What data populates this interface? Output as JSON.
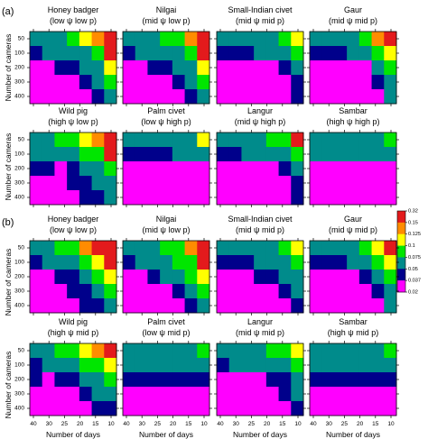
{
  "figure": {
    "panel_labels": [
      "(a)",
      "(b)"
    ],
    "ylabel": "Number of cameras",
    "xlabel": "Number of days",
    "x_ticks": [
      "40",
      "30",
      "25",
      "20",
      "15",
      "10"
    ],
    "y_ticks": [
      "50",
      "100",
      "200",
      "300",
      "400"
    ],
    "legend": {
      "ticks": [
        "0.32",
        "0.15",
        "0.125",
        "0.1",
        "0.075",
        "0.05",
        "0.037",
        "0.02"
      ],
      "colors": [
        "#e31a1c",
        "#ff8c00",
        "#ffff00",
        "#00e600",
        "#008b8b",
        "#00008b",
        "#ff00ff"
      ]
    }
  },
  "chart_data": [
    {
      "type": "heatmap",
      "panel": "(a)",
      "title": "Honey badger",
      "subtitle": "(low ψ low p)",
      "x": [
        "40",
        "35",
        "30",
        "25",
        "20",
        "15",
        "10"
      ],
      "y": [
        "50",
        "100",
        "200",
        "300",
        "400"
      ],
      "values": [
        [
          2,
          2,
          2,
          3,
          4,
          5,
          6
        ],
        [
          1,
          2,
          2,
          2,
          2,
          3,
          6
        ],
        [
          0,
          0,
          1,
          1,
          2,
          2,
          4
        ],
        [
          0,
          0,
          0,
          0,
          1,
          2,
          3
        ],
        [
          0,
          0,
          0,
          0,
          0,
          1,
          2
        ]
      ]
    },
    {
      "type": "heatmap",
      "panel": "(a)",
      "title": "Nilgai",
      "subtitle": "(mid ψ low p)",
      "x": [
        "40",
        "35",
        "30",
        "25",
        "20",
        "15",
        "10"
      ],
      "y": [
        "50",
        "100",
        "200",
        "300",
        "400"
      ],
      "values": [
        [
          2,
          2,
          2,
          3,
          3,
          5,
          6
        ],
        [
          1,
          2,
          2,
          2,
          2,
          3,
          6
        ],
        [
          0,
          0,
          1,
          1,
          2,
          2,
          4
        ],
        [
          0,
          0,
          0,
          0,
          1,
          2,
          3
        ],
        [
          0,
          0,
          0,
          0,
          0,
          1,
          2
        ]
      ]
    },
    {
      "type": "heatmap",
      "panel": "(a)",
      "title": "Small-Indian civet",
      "subtitle": "(mid ψ mid p)",
      "x": [
        "40",
        "35",
        "30",
        "25",
        "20",
        "15",
        "10"
      ],
      "y": [
        "50",
        "100",
        "200",
        "300",
        "400"
      ],
      "values": [
        [
          2,
          2,
          2,
          2,
          2,
          3,
          4
        ],
        [
          1,
          1,
          1,
          2,
          2,
          2,
          3
        ],
        [
          0,
          0,
          0,
          0,
          0,
          1,
          2
        ],
        [
          0,
          0,
          0,
          0,
          0,
          0,
          1
        ],
        [
          0,
          0,
          0,
          0,
          0,
          0,
          1
        ]
      ]
    },
    {
      "type": "heatmap",
      "panel": "(a)",
      "title": "Gaur",
      "subtitle": "(mid ψ mid p)",
      "x": [
        "40",
        "35",
        "30",
        "25",
        "20",
        "15",
        "10"
      ],
      "y": [
        "50",
        "100",
        "200",
        "300",
        "400"
      ],
      "values": [
        [
          2,
          2,
          2,
          2,
          3,
          5,
          6
        ],
        [
          1,
          1,
          1,
          2,
          2,
          3,
          4
        ],
        [
          0,
          0,
          0,
          0,
          0,
          2,
          3
        ],
        [
          0,
          0,
          0,
          0,
          0,
          1,
          2
        ],
        [
          0,
          0,
          0,
          0,
          0,
          0,
          2
        ]
      ]
    },
    {
      "type": "heatmap",
      "panel": "(a)",
      "title": "Wild pig",
      "subtitle": "(high ψ low p)",
      "x": [
        "40",
        "35",
        "30",
        "25",
        "20",
        "15",
        "10"
      ],
      "y": [
        "50",
        "100",
        "200",
        "300",
        "400"
      ],
      "values": [
        [
          2,
          2,
          3,
          3,
          4,
          5,
          6
        ],
        [
          2,
          2,
          2,
          2,
          3,
          3,
          6
        ],
        [
          1,
          1,
          0,
          1,
          2,
          2,
          3
        ],
        [
          0,
          0,
          0,
          1,
          1,
          2,
          2
        ],
        [
          0,
          0,
          0,
          0,
          1,
          1,
          2
        ]
      ]
    },
    {
      "type": "heatmap",
      "panel": "(a)",
      "title": "Palm civet",
      "subtitle": "(low ψ high p)",
      "x": [
        "40",
        "35",
        "30",
        "25",
        "20",
        "15",
        "10"
      ],
      "y": [
        "50",
        "100",
        "200",
        "300",
        "400"
      ],
      "values": [
        [
          2,
          2,
          2,
          2,
          2,
          2,
          4
        ],
        [
          1,
          1,
          1,
          1,
          2,
          2,
          2
        ],
        [
          0,
          0,
          0,
          0,
          0,
          0,
          0
        ],
        [
          0,
          0,
          0,
          0,
          0,
          0,
          0
        ],
        [
          0,
          0,
          0,
          0,
          0,
          0,
          0
        ]
      ]
    },
    {
      "type": "heatmap",
      "panel": "(a)",
      "title": "Langur",
      "subtitle": "(mid ψ high p)",
      "x": [
        "40",
        "35",
        "30",
        "25",
        "20",
        "15",
        "10"
      ],
      "y": [
        "50",
        "100",
        "200",
        "300",
        "400"
      ],
      "values": [
        [
          2,
          2,
          2,
          2,
          3,
          3,
          6
        ],
        [
          1,
          1,
          2,
          2,
          2,
          2,
          3
        ],
        [
          0,
          0,
          0,
          0,
          0,
          1,
          2
        ],
        [
          0,
          0,
          0,
          0,
          0,
          0,
          1
        ],
        [
          0,
          0,
          0,
          0,
          0,
          0,
          1
        ]
      ]
    },
    {
      "type": "heatmap",
      "panel": "(a)",
      "title": "Sambar",
      "subtitle": "(high ψ high p)",
      "x": [
        "40",
        "35",
        "30",
        "25",
        "20",
        "15",
        "10"
      ],
      "y": [
        "50",
        "100",
        "200",
        "300",
        "400"
      ],
      "values": [
        [
          2,
          2,
          2,
          2,
          2,
          2,
          3
        ],
        [
          2,
          2,
          2,
          2,
          2,
          2,
          2
        ],
        [
          0,
          0,
          0,
          0,
          0,
          0,
          0
        ],
        [
          0,
          0,
          0,
          0,
          0,
          0,
          0
        ],
        [
          0,
          0,
          0,
          0,
          0,
          0,
          0
        ]
      ]
    },
    {
      "type": "heatmap",
      "panel": "(b)",
      "title": "Honey badger",
      "subtitle": "(low ψ low p)",
      "x": [
        "40",
        "35",
        "30",
        "25",
        "20",
        "15",
        "10"
      ],
      "y": [
        "50",
        "100",
        "200",
        "300",
        "400"
      ],
      "values": [
        [
          2,
          2,
          3,
          3,
          5,
          6,
          6
        ],
        [
          1,
          2,
          2,
          2,
          3,
          4,
          6
        ],
        [
          0,
          0,
          1,
          1,
          2,
          3,
          4
        ],
        [
          0,
          0,
          0,
          1,
          1,
          2,
          3
        ],
        [
          0,
          0,
          0,
          0,
          1,
          1,
          2
        ]
      ]
    },
    {
      "type": "heatmap",
      "panel": "(b)",
      "title": "Nilgai",
      "subtitle": "(mid ψ low p)",
      "x": [
        "40",
        "35",
        "30",
        "25",
        "20",
        "15",
        "10"
      ],
      "y": [
        "50",
        "100",
        "200",
        "300",
        "400"
      ],
      "values": [
        [
          2,
          2,
          2,
          3,
          3,
          5,
          6
        ],
        [
          1,
          2,
          2,
          2,
          3,
          3,
          6
        ],
        [
          0,
          0,
          1,
          2,
          2,
          3,
          4
        ],
        [
          0,
          0,
          0,
          0,
          1,
          2,
          3
        ],
        [
          0,
          0,
          0,
          0,
          0,
          1,
          2
        ]
      ]
    },
    {
      "type": "heatmap",
      "panel": "(b)",
      "title": "Small-Indian civet",
      "subtitle": "(mid ψ mid p)",
      "x": [
        "40",
        "35",
        "30",
        "25",
        "20",
        "15",
        "10"
      ],
      "y": [
        "50",
        "100",
        "200",
        "300",
        "400"
      ],
      "values": [
        [
          2,
          2,
          2,
          2,
          2,
          3,
          4
        ],
        [
          1,
          1,
          1,
          2,
          2,
          2,
          3
        ],
        [
          0,
          0,
          0,
          1,
          1,
          2,
          2
        ],
        [
          0,
          0,
          0,
          0,
          0,
          1,
          2
        ],
        [
          0,
          0,
          0,
          0,
          0,
          0,
          1
        ]
      ]
    },
    {
      "type": "heatmap",
      "panel": "(b)",
      "title": "Gaur",
      "subtitle": "(mid ψ mid p)",
      "x": [
        "40",
        "35",
        "30",
        "25",
        "20",
        "15",
        "10"
      ],
      "y": [
        "50",
        "100",
        "200",
        "300",
        "400"
      ],
      "values": [
        [
          2,
          2,
          2,
          2,
          3,
          4,
          6
        ],
        [
          1,
          1,
          1,
          2,
          2,
          3,
          4
        ],
        [
          0,
          0,
          0,
          0,
          1,
          2,
          3
        ],
        [
          0,
          0,
          0,
          0,
          0,
          1,
          2
        ],
        [
          0,
          0,
          0,
          0,
          0,
          0,
          2
        ]
      ]
    },
    {
      "type": "heatmap",
      "panel": "(b)",
      "title": "Wild pig",
      "subtitle": "(high ψ mid p)",
      "x": [
        "40",
        "35",
        "30",
        "25",
        "20",
        "15",
        "10"
      ],
      "y": [
        "50",
        "100",
        "200",
        "300",
        "400"
      ],
      "values": [
        [
          2,
          2,
          3,
          3,
          4,
          5,
          6
        ],
        [
          1,
          2,
          2,
          2,
          3,
          3,
          4
        ],
        [
          1,
          0,
          1,
          1,
          2,
          2,
          3
        ],
        [
          0,
          0,
          0,
          0,
          1,
          2,
          2
        ],
        [
          0,
          0,
          0,
          0,
          0,
          1,
          1
        ]
      ]
    },
    {
      "type": "heatmap",
      "panel": "(b)",
      "title": "Palm civet",
      "subtitle": "(low ψ mid p)",
      "x": [
        "40",
        "35",
        "30",
        "25",
        "20",
        "15",
        "10"
      ],
      "y": [
        "50",
        "100",
        "200",
        "300",
        "400"
      ],
      "values": [
        [
          2,
          2,
          2,
          2,
          2,
          2,
          3
        ],
        [
          2,
          2,
          2,
          2,
          2,
          2,
          2
        ],
        [
          1,
          1,
          1,
          1,
          1,
          1,
          1
        ],
        [
          0,
          0,
          0,
          0,
          0,
          0,
          0
        ],
        [
          0,
          0,
          0,
          0,
          0,
          0,
          0
        ]
      ]
    },
    {
      "type": "heatmap",
      "panel": "(b)",
      "title": "Langur",
      "subtitle": "(mid ψ mid p)",
      "x": [
        "40",
        "35",
        "30",
        "25",
        "20",
        "15",
        "10"
      ],
      "y": [
        "50",
        "100",
        "200",
        "300",
        "400"
      ],
      "values": [
        [
          2,
          2,
          2,
          2,
          3,
          3,
          4
        ],
        [
          1,
          2,
          2,
          2,
          2,
          2,
          3
        ],
        [
          0,
          0,
          0,
          0,
          1,
          1,
          2
        ],
        [
          0,
          0,
          0,
          0,
          0,
          1,
          2
        ],
        [
          0,
          0,
          0,
          0,
          0,
          0,
          1
        ]
      ]
    },
    {
      "type": "heatmap",
      "panel": "(b)",
      "title": "Sambar",
      "subtitle": "(high ψ mid p)",
      "x": [
        "40",
        "35",
        "30",
        "25",
        "20",
        "15",
        "10"
      ],
      "y": [
        "50",
        "100",
        "200",
        "300",
        "400"
      ],
      "values": [
        [
          2,
          2,
          2,
          2,
          2,
          2,
          3
        ],
        [
          2,
          2,
          2,
          2,
          2,
          2,
          2
        ],
        [
          1,
          1,
          1,
          1,
          1,
          1,
          1
        ],
        [
          0,
          0,
          0,
          0,
          0,
          0,
          0
        ],
        [
          0,
          0,
          0,
          0,
          0,
          0,
          0
        ]
      ]
    }
  ]
}
